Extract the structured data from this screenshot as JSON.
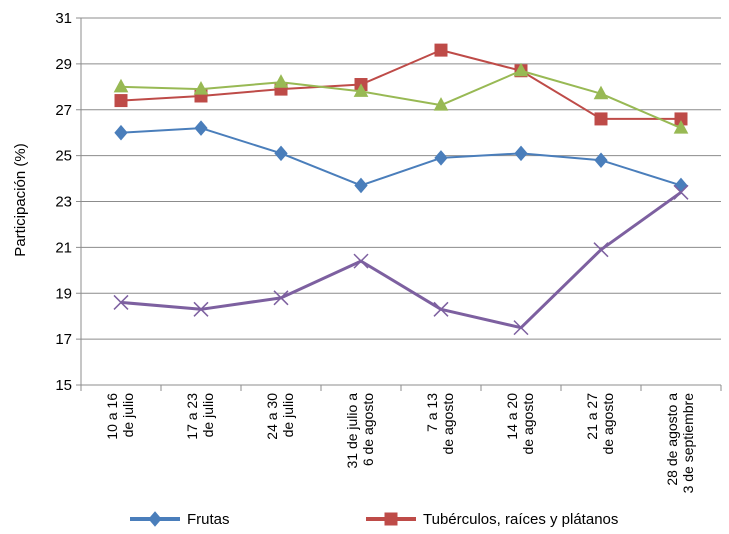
{
  "chart_data": {
    "type": "line",
    "title": "",
    "xlabel": "",
    "ylabel": "Participación (%)",
    "ylim": [
      15,
      31
    ],
    "yticks": [
      "15",
      "17",
      "19",
      "21",
      "23",
      "25",
      "27",
      "29",
      "31"
    ],
    "grid": true,
    "legend_position": "bottom",
    "categories": [
      [
        "10 a 16",
        "de julio"
      ],
      [
        "17 a 23",
        "de julio"
      ],
      [
        "24 a 30",
        "de julio"
      ],
      [
        "31 de julio a",
        "6 de agosto"
      ],
      [
        "7 a 13",
        "de agosto"
      ],
      [
        "14 a 20",
        "de agosto"
      ],
      [
        "21 a 27",
        "de agosto"
      ],
      [
        "28 de agosto a",
        "3 de septiembre"
      ]
    ],
    "series": [
      {
        "name": "Frutas",
        "color": "#4a7ebb",
        "marker": "diamond",
        "values": [
          26.0,
          26.2,
          25.1,
          23.7,
          24.9,
          25.1,
          24.8,
          23.7
        ]
      },
      {
        "name": "Tubérculos, raíces y plátanos",
        "color": "#be4b48",
        "marker": "square",
        "values": [
          27.4,
          27.6,
          27.9,
          28.1,
          29.6,
          28.7,
          26.6,
          26.6
        ]
      },
      {
        "name": "",
        "color": "#98b954",
        "marker": "triangle",
        "values": [
          28.0,
          27.9,
          28.2,
          27.8,
          27.2,
          28.7,
          27.7,
          26.2
        ]
      },
      {
        "name": "",
        "color": "#7d60a0",
        "marker": "x",
        "values": [
          18.6,
          18.3,
          18.8,
          20.4,
          18.3,
          17.5,
          20.9,
          23.4
        ]
      }
    ]
  }
}
